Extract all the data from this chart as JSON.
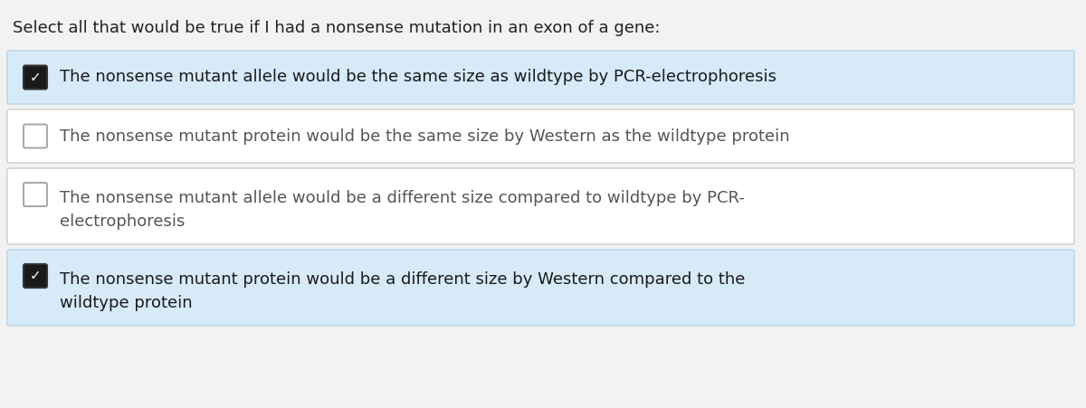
{
  "title": "Select all that would be true if I had a nonsense mutation in an exon of a gene:",
  "title_fontsize": 13,
  "title_color": "#222222",
  "bg_color": "#f2f2f2",
  "options": [
    {
      "lines": [
        "The nonsense mutant allele would be the same size as wildtype by PCR-electrophoresis"
      ],
      "checked": true,
      "box_bg": "#d6eaf8",
      "box_border": "#b8d4ea",
      "text_color": "#1a1a1a"
    },
    {
      "lines": [
        "The nonsense mutant protein would be the same size by Western as the wildtype protein"
      ],
      "checked": false,
      "box_bg": "#ffffff",
      "box_border": "#cccccc",
      "text_color": "#555555"
    },
    {
      "lines": [
        "The nonsense mutant allele would be a different size compared to wildtype by PCR-",
        "electrophoresis"
      ],
      "checked": false,
      "box_bg": "#ffffff",
      "box_border": "#cccccc",
      "text_color": "#555555"
    },
    {
      "lines": [
        "The nonsense mutant protein would be a different size by Western compared to the",
        "wildtype protein"
      ],
      "checked": true,
      "box_bg": "#d6eaf8",
      "box_border": "#b8d4ea",
      "text_color": "#1a1a1a"
    }
  ],
  "option_fontsize": 13,
  "fig_width": 12.0,
  "fig_height": 4.51
}
